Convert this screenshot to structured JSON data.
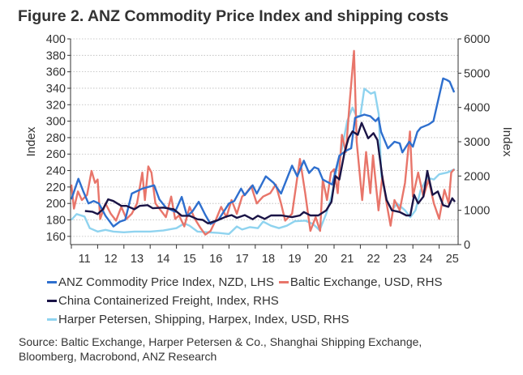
{
  "title": "Figure 2.  ANZ Commodity Price Index and shipping costs",
  "source": {
    "line1": "Source: Baltic Exchange, Harper Petersen & Co., Shanghai Shipping Exchange,",
    "line2": "Bloomberg, Macrobond, ANZ Research"
  },
  "chart_data": {
    "type": "line",
    "title": "Figure 2.  ANZ Commodity Price Index and shipping costs",
    "ylabel": "Index",
    "ylabel_right": "Index",
    "ylim": [
      150,
      400
    ],
    "ylim_right": [
      0,
      6000
    ],
    "xlim": [
      2011,
      2025.7
    ],
    "y_ticks": [
      160,
      180,
      200,
      220,
      240,
      260,
      280,
      300,
      320,
      340,
      360,
      380,
      400
    ],
    "y_ticks_right": [
      0,
      1000,
      2000,
      3000,
      4000,
      5000,
      6000
    ],
    "x_tick_labels": [
      "11",
      "12",
      "13",
      "14",
      "15",
      "16",
      "17",
      "18",
      "19",
      "20",
      "21",
      "22",
      "23",
      "24",
      "25"
    ],
    "grid": "horizontal dotted",
    "legend_placement": "bottom",
    "series": [
      {
        "name": "ANZ Commodity Price Index, NZD, LHS",
        "axis": "left",
        "color": "#2e6fce",
        "x": [
          2011.0,
          2011.27,
          2011.45,
          2011.65,
          2011.85,
          2012.05,
          2012.3,
          2012.6,
          2012.85,
          2013.05,
          2013.3,
          2013.7,
          2014.15,
          2014.35,
          2014.6,
          2014.95,
          2015.2,
          2015.4,
          2015.6,
          2015.85,
          2016.1,
          2016.3,
          2016.6,
          2017.0,
          2017.2,
          2017.46,
          2017.6,
          2017.9,
          2018.06,
          2018.4,
          2018.7,
          2018.98,
          2019.4,
          2019.6,
          2019.85,
          2020.05,
          2020.25,
          2020.4,
          2020.57,
          2020.93,
          2021.2,
          2021.45,
          2021.65,
          2021.8,
          2022.15,
          2022.38,
          2022.58,
          2022.69,
          2022.79,
          2023.05,
          2023.3,
          2023.5,
          2023.6,
          2023.86,
          2024.0,
          2024.17,
          2024.3,
          2024.6,
          2024.78,
          2025.15,
          2025.3,
          2025.4,
          2025.57
        ],
        "y": [
          205,
          230,
          215,
          200,
          203,
          200,
          185,
          172,
          178,
          180,
          212,
          218,
          222,
          205,
          195,
          190,
          208,
          185,
          190,
          202,
          186,
          175,
          180,
          200,
          203,
          218,
          210,
          222,
          212,
          233,
          225,
          212,
          246,
          233,
          252,
          237,
          244,
          242,
          229,
          223,
          258,
          264,
          267,
          304,
          308,
          306,
          300,
          304,
          287,
          267,
          275,
          273,
          262,
          275,
          269,
          287,
          292,
          296,
          300,
          352,
          350,
          348,
          335
        ]
      },
      {
        "name": "Baltic Exchange, USD, RHS",
        "axis": "right",
        "color": "#e8756a",
        "x": [
          2011.0,
          2011.1,
          2011.25,
          2011.4,
          2011.6,
          2011.77,
          2011.9,
          2012.0,
          2012.1,
          2012.3,
          2012.5,
          2012.7,
          2012.9,
          2013.1,
          2013.3,
          2013.5,
          2013.7,
          2013.8,
          2013.93,
          2014.05,
          2014.2,
          2014.4,
          2014.6,
          2014.8,
          2014.95,
          2015.1,
          2015.3,
          2015.5,
          2015.7,
          2015.9,
          2016.1,
          2016.3,
          2016.5,
          2016.7,
          2016.9,
          2017.1,
          2017.3,
          2017.5,
          2017.65,
          2017.85,
          2018.06,
          2018.3,
          2018.57,
          2018.78,
          2018.98,
          2019.14,
          2019.4,
          2019.7,
          2019.9,
          2020.1,
          2020.3,
          2020.47,
          2020.57,
          2020.73,
          2020.88,
          2021.0,
          2021.14,
          2021.3,
          2021.45,
          2021.6,
          2021.76,
          2021.86,
          2022.07,
          2022.22,
          2022.38,
          2022.48,
          2022.69,
          2022.84,
          2023.0,
          2023.15,
          2023.3,
          2023.5,
          2023.7,
          2023.89,
          2024.0,
          2024.2,
          2024.4,
          2024.6,
          2024.8,
          2025.0,
          2025.2,
          2025.36,
          2025.46,
          2025.57
        ],
        "y": [
          1750,
          1050,
          1550,
          1300,
          1450,
          2150,
          1800,
          1900,
          750,
          1200,
          900,
          700,
          1100,
          750,
          900,
          1200,
          2100,
          1300,
          2280,
          2100,
          1200,
          1000,
          800,
          1400,
          750,
          850,
          530,
          1100,
          750,
          500,
          290,
          400,
          720,
          1100,
          800,
          1300,
          900,
          1400,
          1500,
          1700,
          1200,
          1400,
          1500,
          1750,
          1200,
          700,
          900,
          2500,
          1500,
          400,
          800,
          400,
          1900,
          1300,
          2100,
          2200,
          1500,
          3200,
          2700,
          4200,
          5650,
          3000,
          1300,
          2700,
          1500,
          2600,
          1000,
          2000,
          1200,
          550,
          1300,
          1000,
          1800,
          3300,
          1400,
          2100,
          1400,
          1900,
          1200,
          750,
          1600,
          1200,
          2100,
          2200
        ]
      },
      {
        "name": "China Containerized Freight, Index, RHS",
        "axis": "right",
        "color": "#1a1446",
        "x": [
          2011.52,
          2011.8,
          2012.0,
          2012.2,
          2012.4,
          2012.6,
          2012.9,
          2013.1,
          2013.4,
          2013.6,
          2013.9,
          2014.1,
          2014.5,
          2014.9,
          2015.2,
          2015.5,
          2015.8,
          2016.0,
          2016.2,
          2016.6,
          2016.9,
          2017.1,
          2017.3,
          2017.6,
          2017.9,
          2018.1,
          2018.36,
          2018.6,
          2019.0,
          2019.4,
          2019.7,
          2019.85,
          2020.1,
          2020.4,
          2020.7,
          2020.9,
          2021.05,
          2021.2,
          2021.4,
          2021.55,
          2021.7,
          2021.9,
          2022.05,
          2022.3,
          2022.5,
          2022.65,
          2022.85,
          2023.0,
          2023.2,
          2023.5,
          2023.75,
          2023.9,
          2024.05,
          2024.2,
          2024.4,
          2024.55,
          2024.75,
          2024.95,
          2025.15,
          2025.35,
          2025.5,
          2025.6
        ],
        "y": [
          980,
          960,
          890,
          1030,
          1320,
          1270,
          1130,
          1130,
          1030,
          1130,
          1150,
          1060,
          1080,
          1030,
          840,
          840,
          740,
          720,
          620,
          720,
          820,
          860,
          780,
          860,
          740,
          840,
          750,
          850,
          850,
          800,
          850,
          950,
          850,
          850,
          1000,
          1250,
          2000,
          1900,
          2700,
          3100,
          3300,
          3200,
          3550,
          3100,
          3250,
          3050,
          1900,
          1300,
          1000,
          950,
          850,
          850,
          1450,
          1200,
          1400,
          2150,
          1450,
          1550,
          1150,
          1100,
          1350,
          1250
        ]
      },
      {
        "name": "Harper Petersen, Shipping, Harpex, Index, USD, RHS",
        "axis": "right",
        "color": "#8fd3ef",
        "x": [
          2011.0,
          2011.2,
          2011.5,
          2011.7,
          2012.0,
          2012.3,
          2012.6,
          2013.0,
          2013.4,
          2014.0,
          2014.5,
          2015.0,
          2015.3,
          2015.5,
          2015.8,
          2016.2,
          2016.6,
          2017.0,
          2017.3,
          2017.5,
          2017.8,
          2018.1,
          2018.3,
          2018.6,
          2018.9,
          2019.2,
          2019.5,
          2019.9,
          2020.2,
          2020.45,
          2020.7,
          2020.9,
          2021.1,
          2021.3,
          2021.5,
          2021.7,
          2021.85,
          2022.0,
          2022.15,
          2022.4,
          2022.55,
          2022.7,
          2022.8,
          2023.0,
          2023.2,
          2023.4,
          2023.7,
          2023.9,
          2024.1,
          2024.3,
          2024.55,
          2024.8,
          2025.0,
          2025.3,
          2025.6
        ],
        "y": [
          720,
          890,
          820,
          480,
          380,
          430,
          380,
          360,
          380,
          380,
          410,
          480,
          620,
          550,
          380,
          360,
          340,
          310,
          530,
          440,
          510,
          480,
          670,
          550,
          480,
          550,
          680,
          700,
          600,
          420,
          900,
          1400,
          2200,
          2800,
          3600,
          4000,
          3750,
          3750,
          4550,
          4400,
          4450,
          3800,
          2000,
          1300,
          1000,
          1200,
          1000,
          800,
          1000,
          1600,
          1950,
          1900,
          2050,
          2100,
          2200
        ]
      }
    ]
  }
}
